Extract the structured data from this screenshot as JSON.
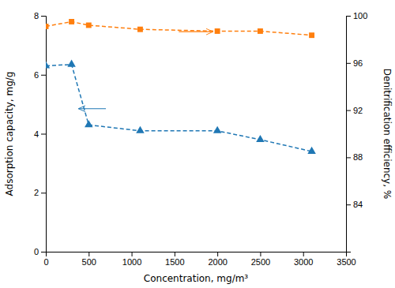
{
  "chart_data": {
    "type": "line",
    "x": [
      0,
      300,
      500,
      1100,
      2000,
      2500,
      3100
    ],
    "xlabel": "Concentration,  mg/m³",
    "ylabel": "Adsorption capacity,  mg/g",
    "y2label": "Denitrification efficiency,  %",
    "xlim": [
      0,
      3500
    ],
    "xticks": [
      0,
      500,
      1000,
      1500,
      2000,
      2500,
      3000,
      3500
    ],
    "ylim": [
      0,
      8
    ],
    "yticks": [
      0,
      2,
      4,
      6,
      8
    ],
    "y2lim": [
      80,
      100
    ],
    "y2ticks": [
      84,
      88,
      92,
      96,
      100
    ],
    "series": [
      {
        "values": [
          6.3,
          6.35,
          4.3,
          4.1,
          4.1,
          3.8,
          3.4
        ],
        "marker": "triangle",
        "line_style": "dashed"
      },
      {
        "values": [
          99.1,
          99.5,
          99.2,
          98.85,
          98.7,
          98.7,
          98.35
        ],
        "marker": "square",
        "line_style": "dashed",
        "axis": "y2"
      }
    ],
    "annotations": [
      {
        "x": 700,
        "x_end": 380,
        "y": 4.85
      },
      {
        "x": 1550,
        "x_end": 1950,
        "y": 98.65,
        "axis": "y2"
      }
    ]
  }
}
